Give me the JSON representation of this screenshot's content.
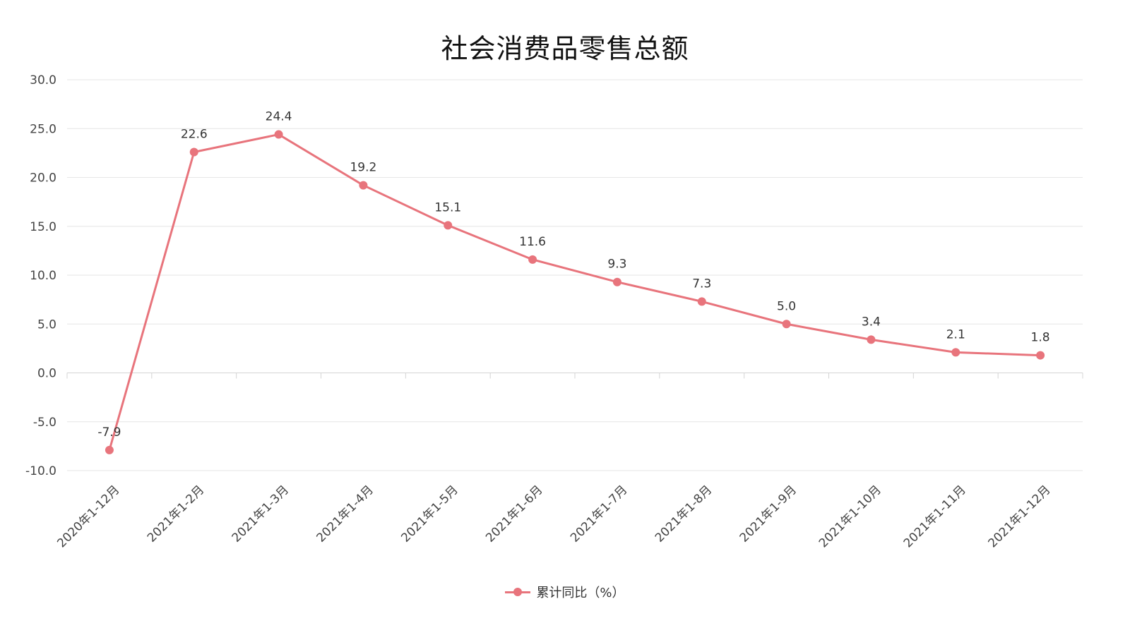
{
  "chart_data": {
    "type": "line",
    "title": "社会消费品零售总额",
    "categories": [
      "2020年1-12月",
      "2021年1-2月",
      "2021年1-3月",
      "2021年1-4月",
      "2021年1-5月",
      "2021年1-6月",
      "2021年1-7月",
      "2021年1-8月",
      "2021年1-9月",
      "2021年1-10月",
      "2021年1-11月",
      "2021年1-12月"
    ],
    "series": [
      {
        "name": "累计同比（%）",
        "values": [
          -7.9,
          22.6,
          24.4,
          19.2,
          15.1,
          11.6,
          9.3,
          7.3,
          5.0,
          3.4,
          2.1,
          1.8
        ],
        "color": "#e8747c"
      }
    ],
    "data_labels": [
      "-7.9",
      "22.6",
      "24.4",
      "19.2",
      "15.1",
      "11.6",
      "9.3",
      "7.3",
      "5.0",
      "3.4",
      "2.1",
      "1.8"
    ],
    "y_ticks": [
      "30.0",
      "25.0",
      "20.0",
      "15.0",
      "10.0",
      "5.0",
      "0.0",
      "-5.0",
      "-10.0"
    ],
    "ylim": [
      -10,
      30
    ],
    "grid": true,
    "legend_position": "bottom-center",
    "xlabel": "",
    "ylabel": ""
  }
}
